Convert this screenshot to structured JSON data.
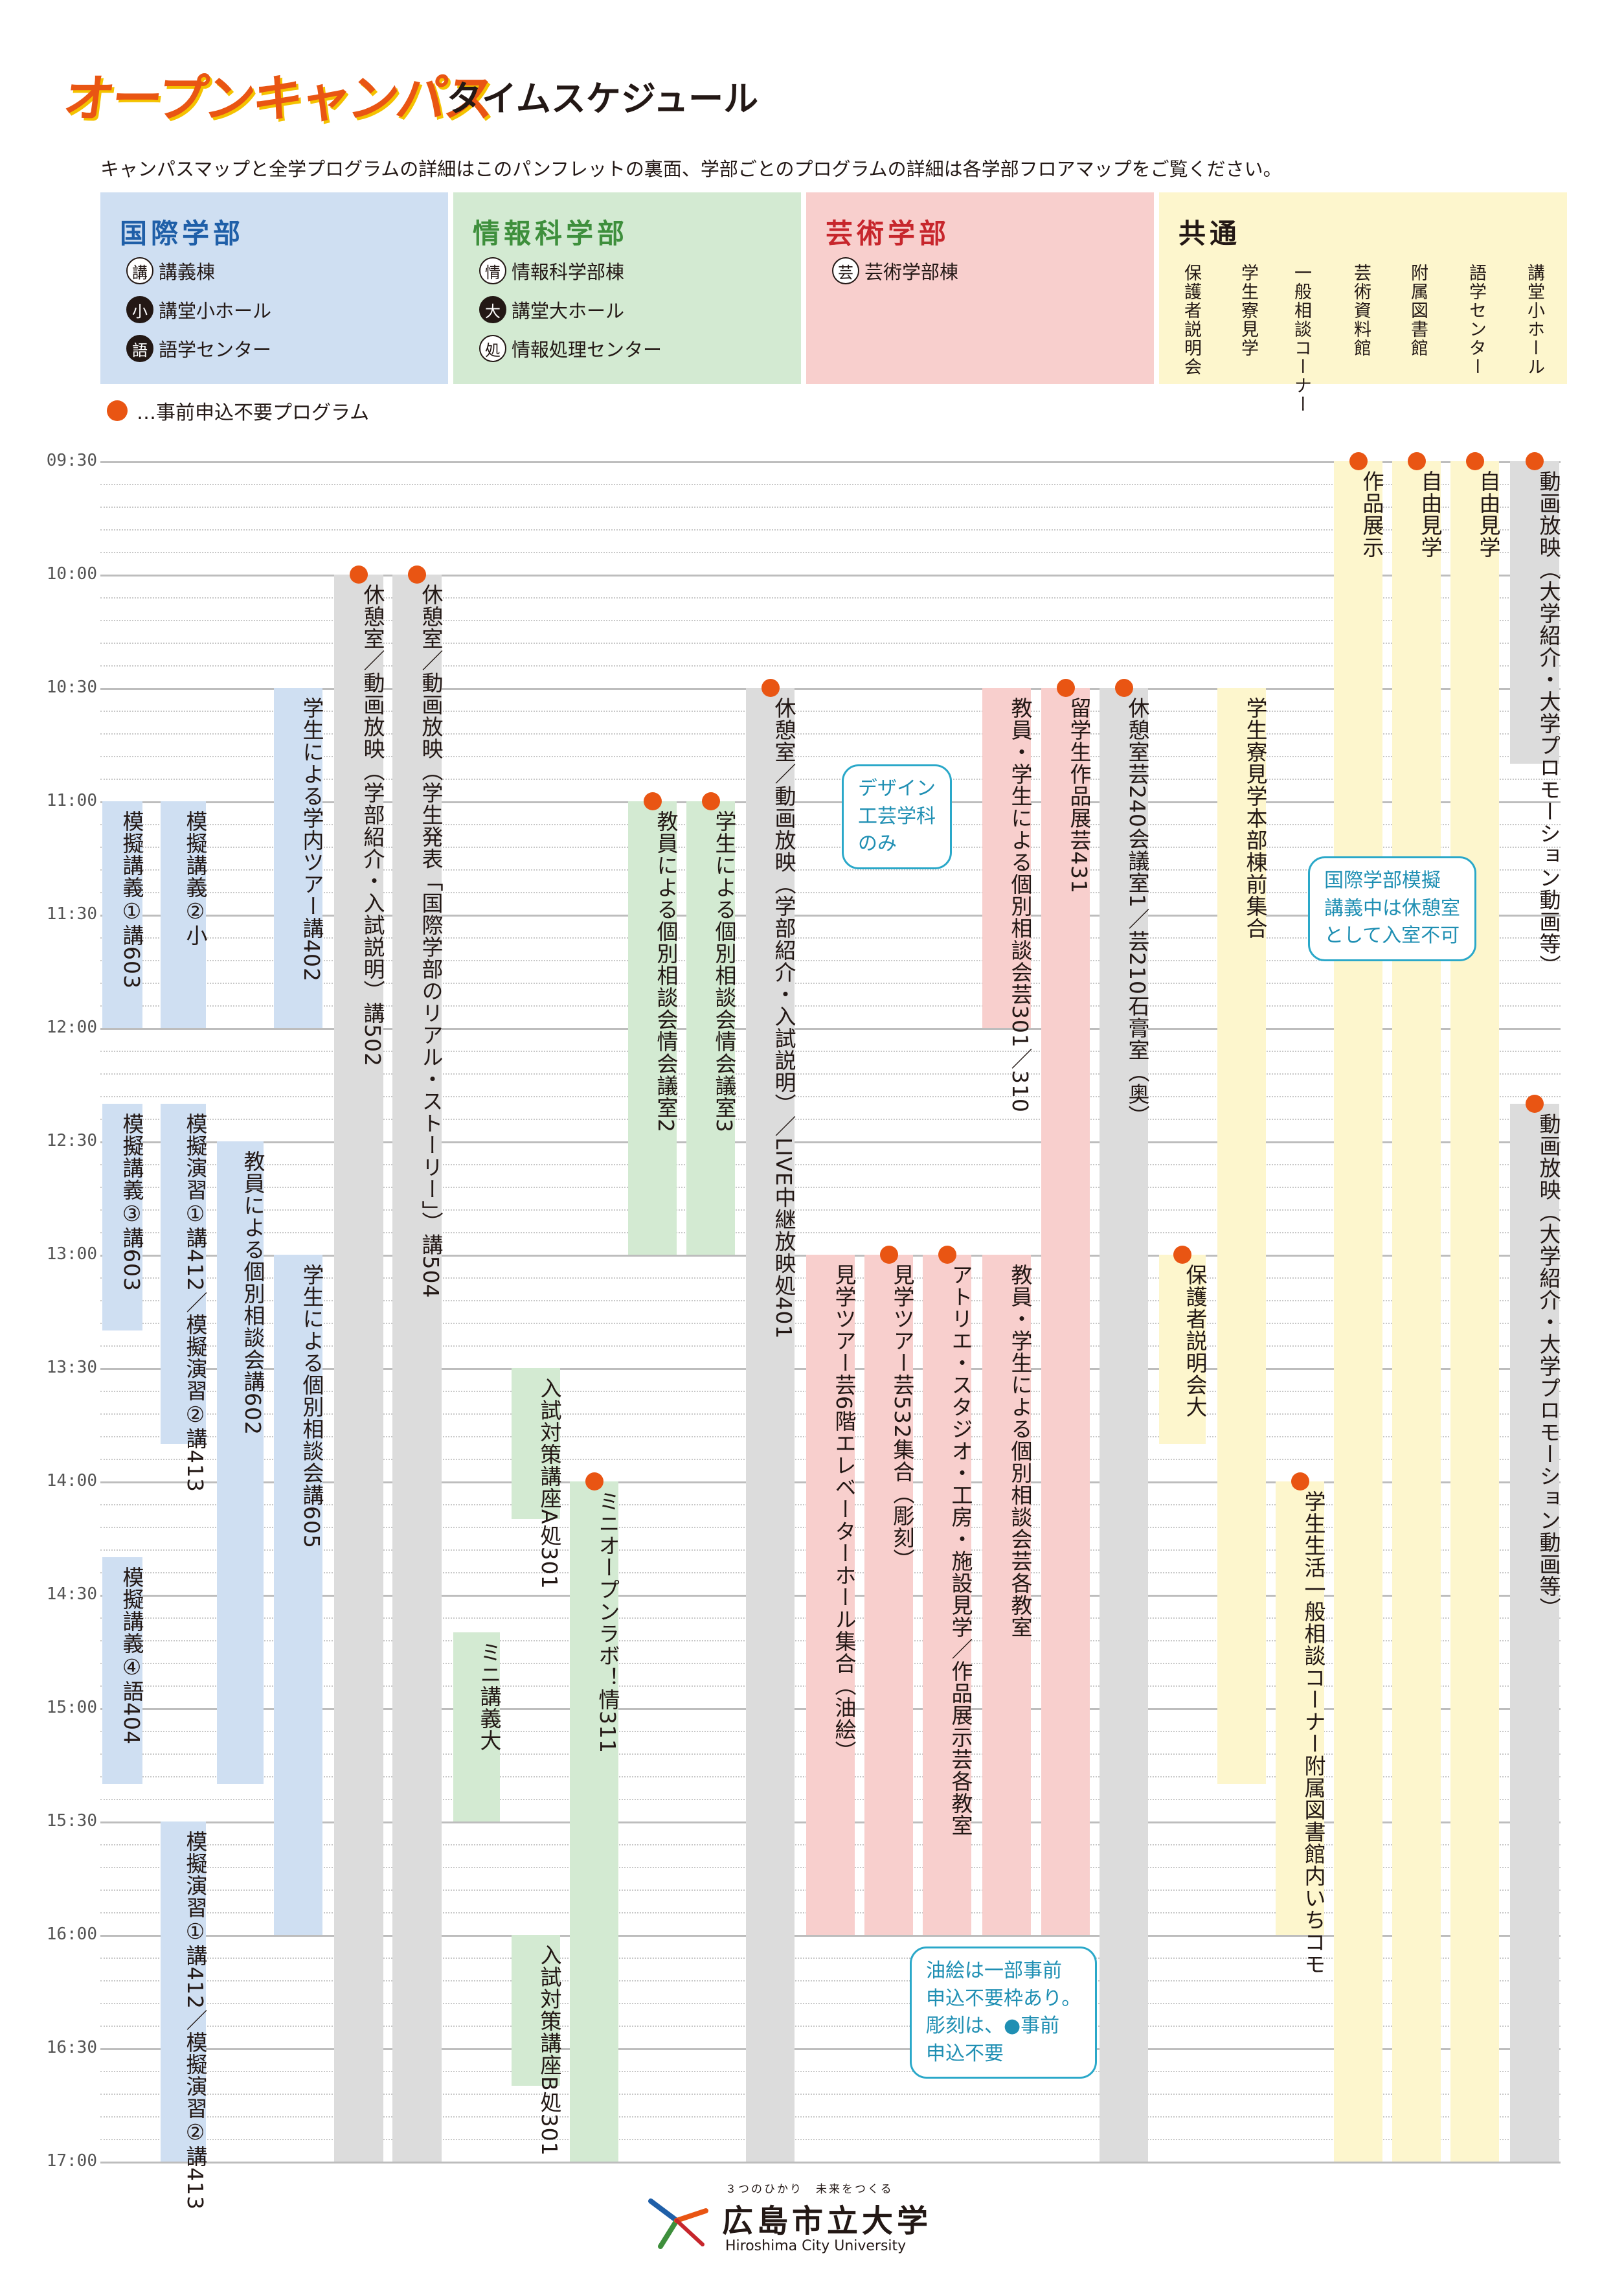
{
  "header": {
    "logo_text": "オープンキャンパス",
    "subtitle": "タイムスケジュール",
    "intro": "キャンパスマップと全学プログラムの詳細はこのパンフレットの裏面、学部ごとのプログラムの詳細は各学部フロアマップをご覧ください。"
  },
  "colors": {
    "blue": "#cfdff2",
    "green": "#d3ead2",
    "pink": "#f8cfcd",
    "yellow": "#fdf6cd",
    "gray": "#dcdcdc",
    "accent": "#e95513",
    "callout": "#2aa8c9"
  },
  "departments": {
    "kokusai": {
      "title": "国際学部",
      "items": [
        {
          "badge": "講",
          "label": "講義棟"
        },
        {
          "badge": "小",
          "label": "講堂小ホール"
        },
        {
          "badge": "語",
          "label": "語学センター"
        }
      ]
    },
    "joho": {
      "title": "情報科学部",
      "items": [
        {
          "badge": "情",
          "label": "情報科学部棟"
        },
        {
          "badge": "大",
          "label": "講堂大ホール"
        },
        {
          "badge": "処",
          "label": "情報処理センター"
        }
      ]
    },
    "geijutsu": {
      "title": "芸術学部",
      "items": [
        {
          "badge": "芸",
          "label": "芸術学部棟"
        }
      ]
    },
    "kyotsu": {
      "title": "共通",
      "facilities": [
        "保護者説明会",
        "学生寮見学",
        "一般相談コーナー",
        "芸術資料館",
        "附属図書館",
        "語学センター",
        "講堂小ホール"
      ]
    }
  },
  "legend": "…事前申込不要プログラム",
  "times": [
    "09:30",
    "10:00",
    "10:30",
    "11:00",
    "11:30",
    "12:00",
    "12:30",
    "13:00",
    "13:30",
    "14:00",
    "14:30",
    "15:00",
    "15:30",
    "16:00",
    "16:30",
    "17:00"
  ],
  "events": [
    {
      "text": "模擬講義①講603"
    },
    {
      "text": "模擬講義②小"
    },
    {
      "text": "模擬講義③講603"
    },
    {
      "text": "模擬講義④語404"
    },
    {
      "text": "模擬演習①講412／模擬演習②講413"
    },
    {
      "text": "模擬演習①講412／模擬演習②講413"
    },
    {
      "text": "教員による個別相談会講602"
    },
    {
      "text": "学生による学内ツアー講402"
    },
    {
      "text": "学生による個別相談会講605"
    },
    {
      "text": "休憩室／動画放映（学部紹介・入試説明）講502"
    },
    {
      "text": "休憩室／動画放映（学生発表「国際学部のリアル・ストーリー」）講504"
    },
    {
      "text": "ミニ講義大"
    },
    {
      "text": "入試対策講座A処301"
    },
    {
      "text": "入試対策講座B処301"
    },
    {
      "text": "ミニオープンラボ！情311"
    },
    {
      "text": "教員による個別相談会情会議室2"
    },
    {
      "text": "学生による個別相談会情会議室3"
    },
    {
      "text": "休憩室／動画放映（学部紹介・入試説明）／LIVE中継放映処401"
    },
    {
      "text": "見学ツアー芸6階エレベーターホール集合（油絵）"
    },
    {
      "text": "見学ツアー芸532集合（彫刻）"
    },
    {
      "text": "アトリエ・スタジオ・工房・施設見学／作品展示芸各教室"
    },
    {
      "text": "教員・学生による個別相談会芸各教室"
    },
    {
      "text": "教員・学生による個別相談会芸301／310"
    },
    {
      "text": "留学生作品展芸431"
    },
    {
      "text": "休憩室芸240会議室1／芸210石膏室（奥）"
    },
    {
      "text": "保護者説明会大"
    },
    {
      "text": "学生寮見学本部棟前集合"
    },
    {
      "text": "学生生活一般相談コーナー附属図書館内いちコモ"
    },
    {
      "text": "作品展示"
    },
    {
      "text": "自由見学"
    },
    {
      "text": "自由見学"
    },
    {
      "text": "動画放映（大学紹介・大学プロモーション動画等）"
    },
    {
      "text": "動画放映（大学紹介・大学プロモーション動画等）"
    }
  ],
  "callouts": {
    "design": "デザイン\n工芸学科\nのみ",
    "kokusai_notice": "国際学部模擬\n講義中は休憩室\nとして入室不可",
    "oil_notice": "油絵は一部事前\n申込不要枠あり。\n彫刻は、●事前\n申込不要"
  },
  "university": {
    "tagline": "３つのひかり　未来をつくる",
    "name": "広島市立大学",
    "english": "Hiroshima City University"
  }
}
